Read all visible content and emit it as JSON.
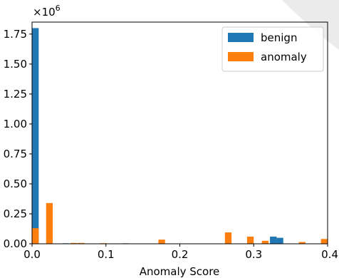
{
  "chart_data": {
    "type": "bar",
    "title": "",
    "xlabel": "Anomaly Score",
    "ylabel": "",
    "xlim": [
      0.0,
      0.4
    ],
    "ylim": [
      0,
      1.85
    ],
    "y_multiplier_label": "×10",
    "y_multiplier_exp": "6",
    "grid": false,
    "legend_position": "top-right",
    "xticks": [
      {
        "value": 0.0,
        "label": "0.0"
      },
      {
        "value": 0.1,
        "label": "0.1"
      },
      {
        "value": 0.2,
        "label": "0.2"
      },
      {
        "value": 0.3,
        "label": "0.3"
      },
      {
        "value": 0.4,
        "label": "0.4"
      }
    ],
    "yticks": [
      {
        "value": 0.0,
        "label": "0.00"
      },
      {
        "value": 0.25,
        "label": "0.25"
      },
      {
        "value": 0.5,
        "label": "0.50"
      },
      {
        "value": 0.75,
        "label": "0.75"
      },
      {
        "value": 1.0,
        "label": "1.00"
      },
      {
        "value": 1.25,
        "label": "1.25"
      },
      {
        "value": 1.5,
        "label": "1.50"
      },
      {
        "value": 1.75,
        "label": "1.75"
      }
    ],
    "bin_width": 0.01,
    "series": [
      {
        "name": "benign",
        "color": "#1f77b4",
        "bins": [
          {
            "x0": 0.0,
            "x1": 0.009,
            "value": 1.8
          },
          {
            "x0": 0.041,
            "x1": 0.05,
            "value": 0.004
          },
          {
            "x0": 0.052,
            "x1": 0.061,
            "value": 0.004
          },
          {
            "x0": 0.122,
            "x1": 0.131,
            "value": 0.004
          },
          {
            "x0": 0.322,
            "x1": 0.331,
            "value": 0.06
          },
          {
            "x0": 0.331,
            "x1": 0.34,
            "value": 0.05
          }
        ]
      },
      {
        "name": "anomaly",
        "color": "#ff7f0e",
        "bins": [
          {
            "x0": 0.0,
            "x1": 0.009,
            "value": 0.13
          },
          {
            "x0": 0.019,
            "x1": 0.028,
            "value": 0.34
          },
          {
            "x0": 0.052,
            "x1": 0.061,
            "value": 0.007
          },
          {
            "x0": 0.062,
            "x1": 0.071,
            "value": 0.007
          },
          {
            "x0": 0.092,
            "x1": 0.101,
            "value": 0.005
          },
          {
            "x0": 0.171,
            "x1": 0.18,
            "value": 0.035
          },
          {
            "x0": 0.261,
            "x1": 0.27,
            "value": 0.095
          },
          {
            "x0": 0.291,
            "x1": 0.3,
            "value": 0.06
          },
          {
            "x0": 0.311,
            "x1": 0.32,
            "value": 0.025
          },
          {
            "x0": 0.361,
            "x1": 0.37,
            "value": 0.015
          },
          {
            "x0": 0.391,
            "x1": 0.4,
            "value": 0.04
          }
        ]
      }
    ]
  }
}
